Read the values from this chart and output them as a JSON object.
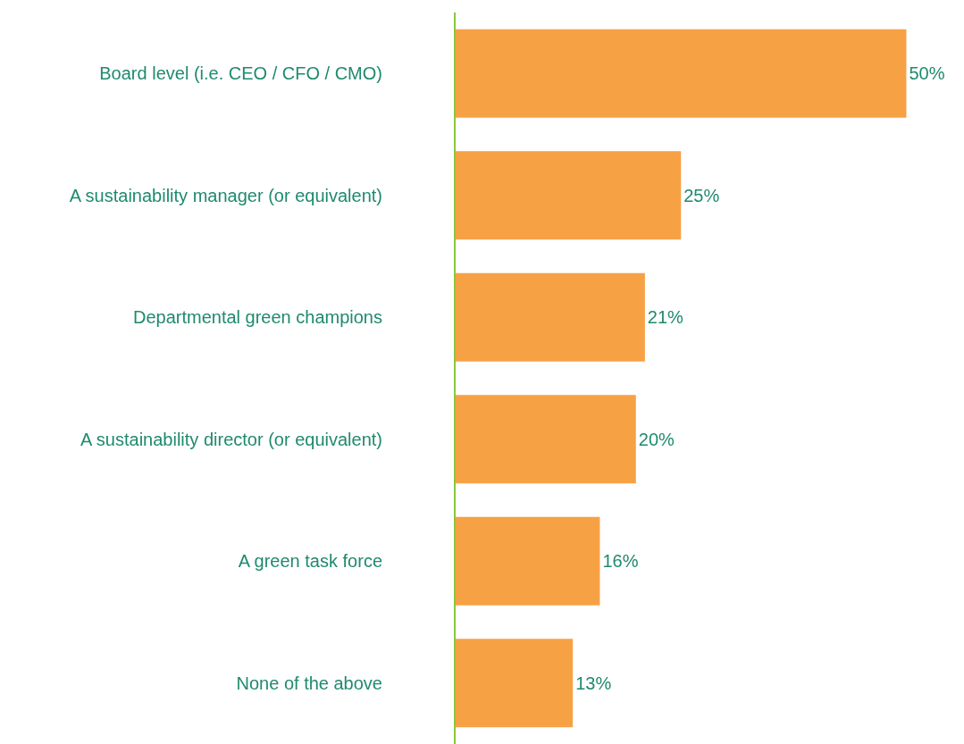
{
  "chart_data": {
    "type": "bar",
    "orientation": "horizontal",
    "categories": [
      "Board level (i.e. CEO / CFO / CMO)",
      "A sustainability manager (or equivalent)",
      "Departmental green champions",
      "A sustainability director (or equivalent)",
      "A green task force",
      "None of the above"
    ],
    "values": [
      50,
      25,
      21,
      20,
      16,
      13
    ],
    "color": "#f7a145",
    "data_labels": true,
    "value_labels": [
      "50%",
      "25%",
      "21%",
      "20%",
      "16%",
      "13%"
    ]
  }
}
